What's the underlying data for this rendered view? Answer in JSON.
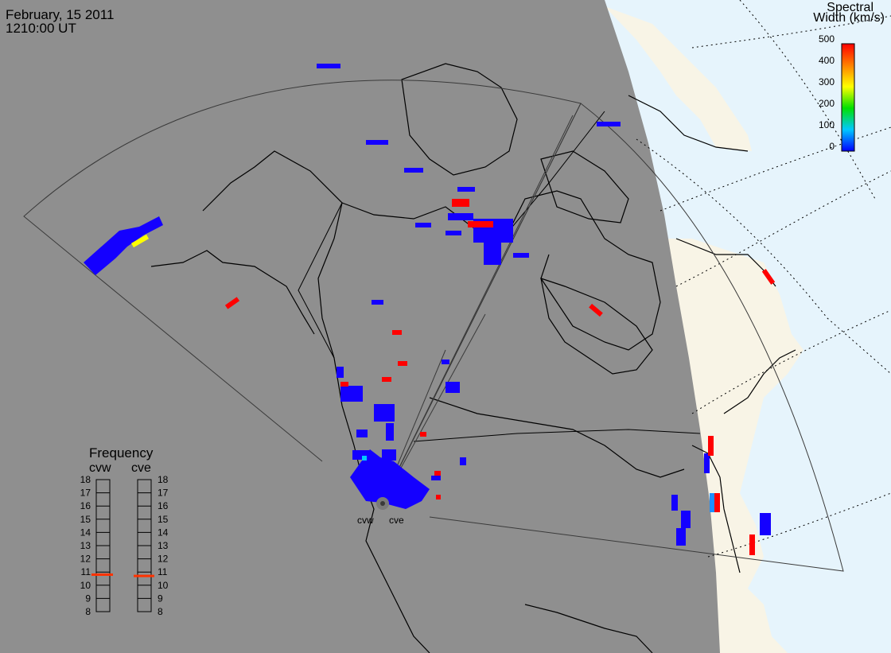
{
  "header": {
    "date": "February, 15 2011",
    "time": "1210:00 UT"
  },
  "colorbar": {
    "title_line1": "Spectral",
    "title_line2": "Width (km/s)",
    "ticks": [
      "500",
      "400",
      "300",
      "200",
      "100",
      "0"
    ],
    "range": [
      0,
      500
    ],
    "colors": [
      "#0000ff",
      "#00c8ff",
      "#00e000",
      "#ffff00",
      "#ff8000",
      "#ff0000"
    ]
  },
  "radars": {
    "west": "cvw",
    "east": "cve"
  },
  "frequency": {
    "title": "Frequency",
    "west_label": "cvw",
    "east_label": "cve",
    "ticks": [
      "18",
      "17",
      "16",
      "15",
      "14",
      "13",
      "12",
      "11",
      "10",
      "9",
      "8"
    ],
    "unit_range_mhz": [
      8,
      18
    ],
    "west_value_mhz": 10.8,
    "east_value_mhz": 10.7,
    "marker_color": "#ff3300"
  },
  "colors": {
    "night": "#8f8f8f",
    "day_land": "#f8f4e6",
    "day_ocean": "#e6f4fc",
    "coast": "#000000",
    "fov": "#3a3a3a"
  }
}
